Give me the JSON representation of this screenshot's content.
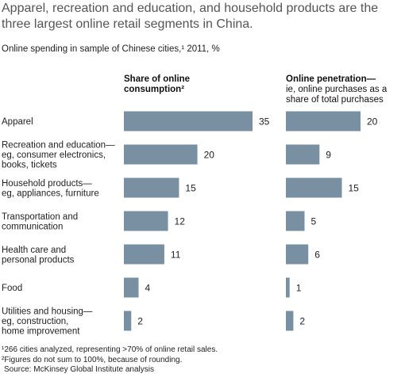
{
  "title": "Apparel, recreation and education, and household products are the three largest online retail segments in China.",
  "subtitle": "Online spending in sample of Chinese cities,¹ 2011, %",
  "columns": {
    "share": {
      "heading": "Share of online consumption²"
    },
    "penetration": {
      "heading": "Online penetration—",
      "subheading": "ie, online purchases as a share of total purchases"
    }
  },
  "colors": {
    "bar": "#7990a2",
    "text": "#222222",
    "title": "#555555"
  },
  "chart_data": {
    "type": "bar",
    "orientation": "horizontal",
    "categories": [
      [
        "Apparel"
      ],
      [
        "Recreation and education—",
        "eg, consumer electronics,",
        "books, tickets"
      ],
      [
        "Household products—",
        "eg, appliances, furniture"
      ],
      [
        "Transportation and",
        "communication"
      ],
      [
        "Health care and",
        "personal products"
      ],
      [
        "Food"
      ],
      [
        "Utilities and housing—",
        "eg, construction,",
        "home improvement"
      ]
    ],
    "series": [
      {
        "name": "Share of online consumption²",
        "values": [
          35,
          20,
          15,
          12,
          11,
          4,
          2
        ]
      },
      {
        "name": "Online penetration—ie, online purchases as a share of total purchases",
        "values": [
          20,
          9,
          15,
          5,
          6,
          1,
          2
        ]
      }
    ],
    "grid": false,
    "legend": "none"
  },
  "footnotes": [
    "¹266 cities analyzed, representing >70% of online retail sales.",
    "²Figures do not sum to 100%, because of rounding.",
    "Source: McKinsey Global Institute analysis"
  ]
}
